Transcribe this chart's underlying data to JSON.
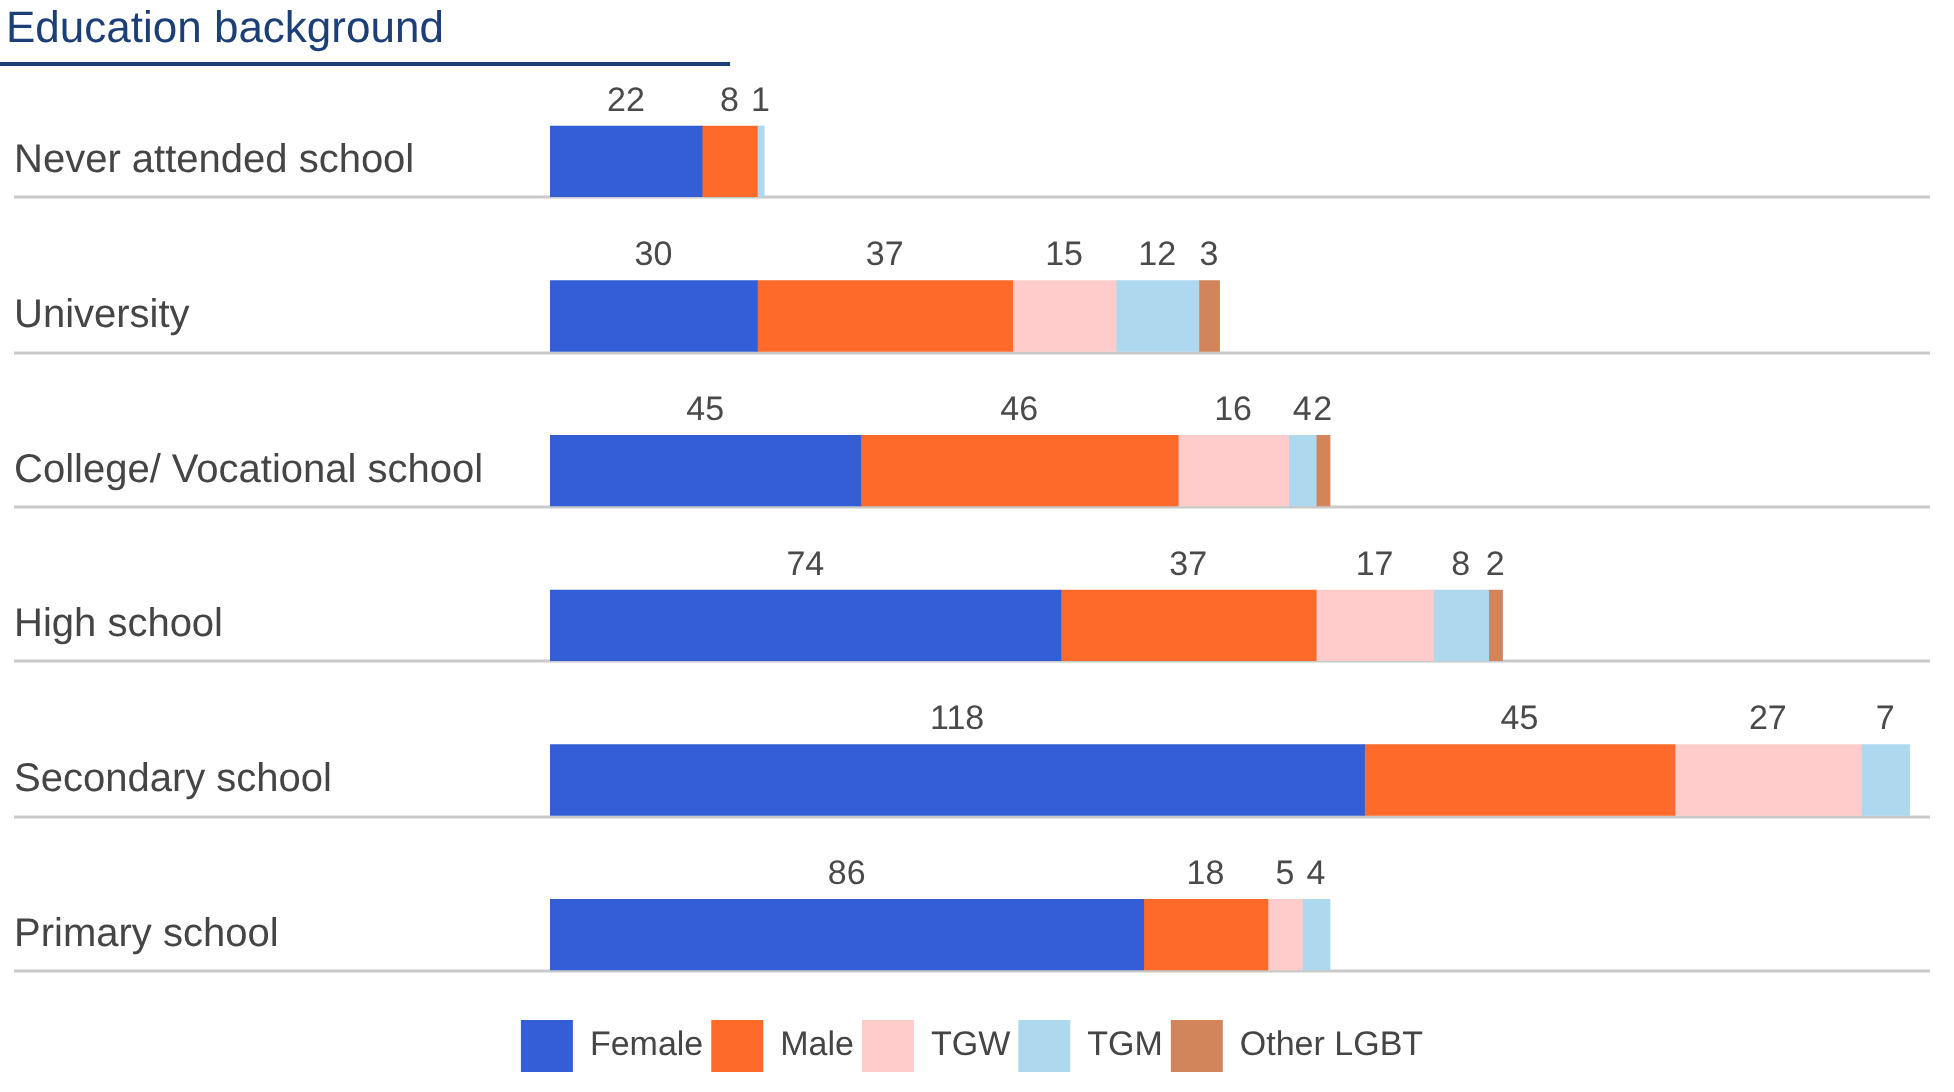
{
  "chart_data": {
    "type": "bar",
    "orientation": "horizontal",
    "stacked": true,
    "title": "Education background",
    "categories": [
      "Never attended school",
      "University",
      "College/ Vocational school",
      "High school",
      "Secondary school",
      "Primary school"
    ],
    "series": [
      {
        "name": "Female",
        "color": "#335ed5",
        "values": [
          22,
          30,
          45,
          74,
          118,
          86
        ]
      },
      {
        "name": "Male",
        "color": "#fe6a29",
        "values": [
          8,
          37,
          46,
          37,
          45,
          18
        ]
      },
      {
        "name": "TGW",
        "color": "#ffcccb",
        "values": [
          null,
          15,
          16,
          17,
          27,
          5
        ]
      },
      {
        "name": "TGM",
        "color": "#add8ee",
        "values": [
          1,
          12,
          4,
          8,
          7,
          4
        ]
      },
      {
        "name": "Other LGBT",
        "color": "#d2845a",
        "values": [
          null,
          3,
          2,
          2,
          null,
          null
        ]
      }
    ],
    "data_labels": true,
    "legend": "bottom",
    "grid": "y",
    "tick_labels": "y"
  }
}
